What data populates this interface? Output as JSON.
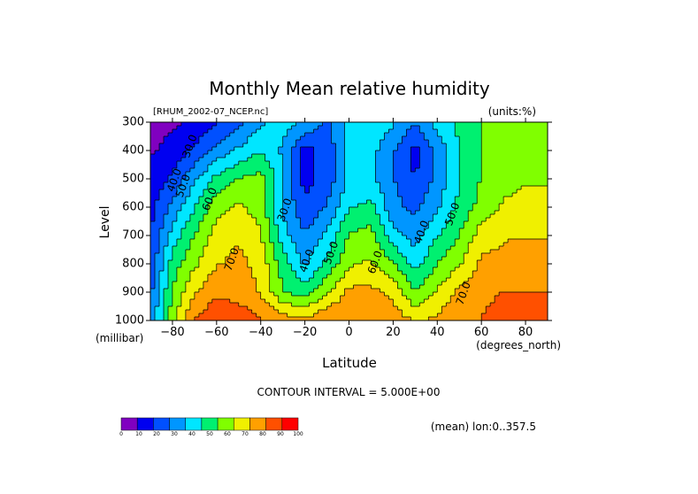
{
  "chart_data": {
    "type": "heatmap",
    "subtype": "filled-contour",
    "title": "Monthly Mean relative humidity",
    "file_label": "[RHUM_2002-07_NCEP.nc]",
    "units_label": "(units:%)",
    "xlabel": "Latitude",
    "x_unit_label": "(degrees_north)",
    "ylabel": "Level",
    "y_unit_label": "(millibar)",
    "xlim": [
      -90,
      90
    ],
    "ylim": [
      1000,
      300
    ],
    "x_ticks": [
      -80,
      -60,
      -40,
      -20,
      0,
      20,
      40,
      60,
      80
    ],
    "x_tick_labels": [
      "−80",
      "−60",
      "−40",
      "−20",
      "0",
      "20",
      "40",
      "60",
      "80"
    ],
    "y_ticks": [
      300,
      400,
      500,
      600,
      700,
      800,
      900,
      1000
    ],
    "y_tick_labels": [
      "300",
      "400",
      "500",
      "600",
      "700",
      "800",
      "900",
      "1000"
    ],
    "contour_interval_text": "CONTOUR INTERVAL = 5.000E+00",
    "footer_note": "(mean) lon:0..357.5",
    "colorbar": {
      "levels": [
        0,
        10,
        20,
        30,
        40,
        50,
        60,
        70,
        80,
        90,
        100
      ],
      "labels": [
        "0",
        "10",
        "20",
        "30",
        "40",
        "50",
        "60",
        "70",
        "80",
        "90",
        "100"
      ],
      "colors": [
        "#8000c0",
        "#0000f0",
        "#0050ff",
        "#0096ff",
        "#00e6ff",
        "#00f070",
        "#80ff00",
        "#f0f000",
        "#ffa000",
        "#ff5000",
        "#ff0000"
      ]
    },
    "levels_mb": [
      300,
      400,
      500,
      600,
      700,
      800,
      900,
      1000
    ],
    "latitudes": [
      -90,
      -80,
      -70,
      -60,
      -50,
      -40,
      -30,
      -20,
      -10,
      0,
      10,
      20,
      30,
      40,
      50,
      60,
      70,
      80,
      90
    ],
    "values": [
      [
        5,
        8,
        10,
        18,
        25,
        35,
        40,
        35,
        25,
        38,
        42,
        38,
        28,
        40,
        48,
        55,
        58,
        60,
        60
      ],
      [
        8,
        12,
        20,
        30,
        38,
        45,
        35,
        15,
        22,
        38,
        40,
        28,
        15,
        30,
        45,
        55,
        58,
        62,
        62
      ],
      [
        12,
        20,
        35,
        48,
        55,
        58,
        38,
        15,
        22,
        38,
        38,
        28,
        18,
        30,
        45,
        55,
        60,
        62,
        62
      ],
      [
        15,
        30,
        45,
        60,
        65,
        60,
        35,
        20,
        28,
        45,
        48,
        30,
        25,
        35,
        48,
        58,
        65,
        68,
        68
      ],
      [
        18,
        40,
        55,
        68,
        72,
        65,
        40,
        28,
        38,
        55,
        58,
        40,
        32,
        45,
        55,
        68,
        72,
        72,
        72
      ],
      [
        20,
        50,
        62,
        72,
        75,
        70,
        50,
        35,
        48,
        62,
        65,
        55,
        42,
        55,
        62,
        75,
        75,
        78,
        78
      ],
      [
        25,
        55,
        72,
        80,
        78,
        72,
        55,
        50,
        62,
        75,
        75,
        70,
        55,
        65,
        75,
        80,
        82,
        82,
        82
      ],
      [
        30,
        60,
        82,
        90,
        88,
        82,
        78,
        75,
        82,
        82,
        80,
        78,
        72,
        75,
        80,
        82,
        85,
        85,
        85
      ]
    ],
    "contour_labels": [
      {
        "text": "30.0",
        "lat": -72,
        "level": 385
      },
      {
        "text": "40.0",
        "lat": -79,
        "level": 505
      },
      {
        "text": "50.0",
        "lat": -75,
        "level": 525
      },
      {
        "text": "60.0",
        "lat": -63,
        "level": 572
      },
      {
        "text": "30.0",
        "lat": -29,
        "level": 610
      },
      {
        "text": "70.0",
        "lat": -53,
        "level": 785
      },
      {
        "text": "40.0",
        "lat": -19,
        "level": 790
      },
      {
        "text": "50.0",
        "lat": -8,
        "level": 762
      },
      {
        "text": "60.0",
        "lat": 12,
        "level": 795
      },
      {
        "text": "40.0",
        "lat": 33,
        "level": 688
      },
      {
        "text": "50.0",
        "lat": 47,
        "level": 625
      },
      {
        "text": "70.0",
        "lat": 52,
        "level": 905
      }
    ]
  }
}
